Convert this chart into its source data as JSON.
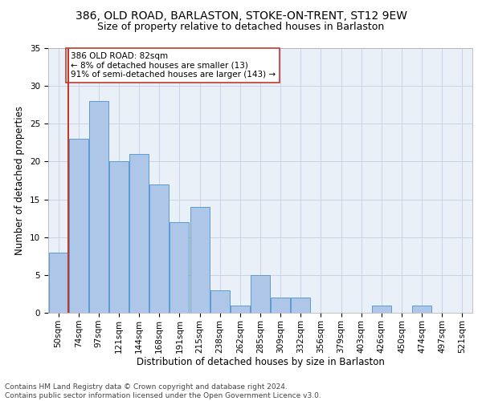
{
  "title1": "386, OLD ROAD, BARLASTON, STOKE-ON-TRENT, ST12 9EW",
  "title2": "Size of property relative to detached houses in Barlaston",
  "xlabel": "Distribution of detached houses by size in Barlaston",
  "ylabel": "Number of detached properties",
  "bar_labels": [
    "50sqm",
    "74sqm",
    "97sqm",
    "121sqm",
    "144sqm",
    "168sqm",
    "191sqm",
    "215sqm",
    "238sqm",
    "262sqm",
    "285sqm",
    "309sqm",
    "332sqm",
    "356sqm",
    "379sqm",
    "403sqm",
    "426sqm",
    "450sqm",
    "474sqm",
    "497sqm",
    "521sqm"
  ],
  "bar_values": [
    8,
    23,
    28,
    20,
    21,
    17,
    12,
    14,
    3,
    1,
    5,
    2,
    2,
    0,
    0,
    0,
    1,
    0,
    1,
    0,
    0
  ],
  "bar_color": "#aec6e8",
  "bar_edge_color": "#5b9bd5",
  "vline_x_index": 1,
  "vline_color": "#c0392b",
  "annotation_text": "386 OLD ROAD: 82sqm\n← 8% of detached houses are smaller (13)\n91% of semi-detached houses are larger (143) →",
  "annotation_box_color": "white",
  "annotation_box_edge_color": "#c0392b",
  "ylim": [
    0,
    35
  ],
  "yticks": [
    0,
    5,
    10,
    15,
    20,
    25,
    30,
    35
  ],
  "grid_color": "#c8d4e8",
  "background_color": "#eaf0f8",
  "footer_text": "Contains HM Land Registry data © Crown copyright and database right 2024.\nContains public sector information licensed under the Open Government Licence v3.0.",
  "title1_fontsize": 10,
  "title2_fontsize": 9,
  "xlabel_fontsize": 8.5,
  "ylabel_fontsize": 8.5,
  "tick_fontsize": 7.5,
  "annotation_fontsize": 7.5,
  "footer_fontsize": 6.5
}
